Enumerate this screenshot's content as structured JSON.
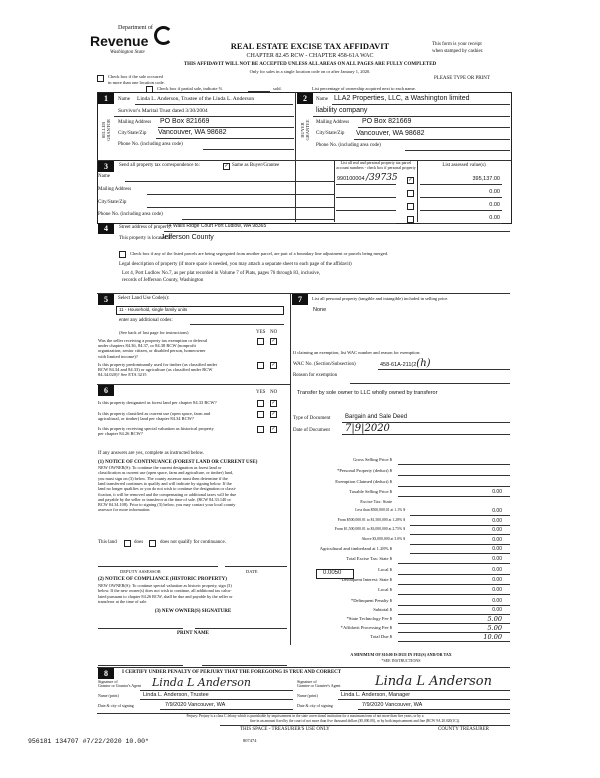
{
  "header": {
    "logo_top": "Department of",
    "logo_main": "Revenue",
    "logo_sub": "Washington State",
    "title": "REAL ESTATE EXCISE TAX AFFIDAVIT",
    "chapter": "CHAPTER 82.45 RCW - CHAPTER 458-61A WAC",
    "warning": "THIS AFFIDAVIT WILL NOT BE ACCEPTED UNLESS ALL AREAS ON ALL PAGES ARE FULLY COMPLETED",
    "only_for": "Only for sales in a single location code on or after January 1, 2020.",
    "receipt_1": "This form is your receipt",
    "receipt_2": "when stamped by cashier.",
    "type_or_print": "PLEASE TYPE OR PRINT",
    "multi_location_1": "Check box if the sale occurred",
    "multi_location_2": "in more than one location code.",
    "partial_sale": "Check box if partial sale, indicate %",
    "sold": "sold.",
    "ownership_note": "List percentage of ownership acquired next to each name."
  },
  "seller": {
    "num": "1",
    "side_label": "SELLER GRANTOR",
    "name_label": "Name",
    "name_1": "Linda L. Anderson, Trustee of the Linda L. Anderson",
    "name_2": "Survivor's Marital Trust dated 3/30/2004",
    "mail_label": "Mailing Address",
    "mail": "PO Box 821669",
    "city_label": "City/State/Zip",
    "city": "Vancouver, WA 98682",
    "phone_label": "Phone No. (including area code)"
  },
  "buyer": {
    "num": "2",
    "side_label": "BUYER GRANTEE",
    "name_label": "Name",
    "name_1": "LLA2 Properties, LLC, a Washington limited",
    "name_2": "liability company",
    "mail_label": "Mailing Address",
    "mail": "PO Box 821669",
    "city_label": "City/State/Zip",
    "city": "Vancouver, WA 98682",
    "phone_label": "Phone No. (including area code)"
  },
  "section3": {
    "num": "3",
    "send_label": "Send all property tax correspondence to:",
    "same_label": "Same as Buyer/Grantee",
    "same_checked": true,
    "name_label": "Name",
    "mail_label": "Mailing Address",
    "city_label": "City/State/Zip",
    "phone_label": "Phone No. (including area code)",
    "parcel_header_1": "List all real and personal property tax parcel",
    "parcel_header_2": "account numbers - check box if personal property",
    "value_header": "List assessed value(s)",
    "parcels": [
      {
        "number": "990100004",
        "handwritten": "/39735",
        "personal": true,
        "value": "395,137.00"
      },
      {
        "number": "",
        "handwritten": "",
        "personal": false,
        "value": "0.00"
      },
      {
        "number": "",
        "handwritten": "",
        "personal": false,
        "value": "0.00"
      },
      {
        "number": "",
        "handwritten": "",
        "personal": false,
        "value": "0.00"
      }
    ]
  },
  "section4": {
    "num": "4",
    "street_label": "Street address of property:",
    "street": "74 Walls Ridge Court Port Ludlow, WA 98365",
    "located_label": "This property is located in",
    "county": "Jefferson County",
    "segregated_label": "Check box if any of the listed parcels are being segregated from another parcel, are part of a boundary line adjustment or parcels being merged.",
    "legal_label": "Legal description of property (if more space is needed, you may attach a separate sheet to each page of the affidavit)",
    "legal_1": "Lot 4, Port Ludlow No.7, as per plat recorded in Volume 7 of Plats, pages 76 through 83, inclusive,",
    "legal_2": "records of Jefferson County, Washington"
  },
  "section5": {
    "num": "5",
    "label": "Select Land Use Code(s):",
    "code": "11 - Household, single family units",
    "additional": "enter any additional codes:",
    "see_back": "(See back of last page for instructions)",
    "yes": "YES",
    "no": "NO",
    "q1": [
      "Was the seller receiving a property tax exemption or deferral",
      "under chapters 84.36, 84.37, or 84.38 RCW (nonprofit",
      "organization, senior citizen, or disabled person, homeowner",
      "with limited income)?"
    ],
    "q2": [
      "Is this property predominantly used for timber (as classified under",
      "RCW 84.34 and 84.33) or agriculture (as classified under RCW",
      "84.34.020)? See ETA 3215"
    ]
  },
  "section6": {
    "num": "6",
    "yes": "YES",
    "no": "NO",
    "q1": [
      "Is this property designated as forest land per chapter 84.33 RCW?"
    ],
    "q2": [
      "Is this property classified as current use (open space, farm and",
      "agricultural, or timber) land per chapter 84.34 RCW?"
    ],
    "q3": [
      "Is this property receiving special valuation as historical property",
      "per chapter 84.26 RCW?"
    ],
    "if_yes": "If any answers are yes, complete as instructed below.",
    "notice1_title": "(1) NOTICE OF CONTINUANCE (FOREST LAND OR CURRENT USE)",
    "notice1_body": [
      "NEW OWNER(S): To continue the current designation as forest land or",
      "classification as current use (open space, farm and agriculture, or timber) land,",
      "you must sign on (3) below. The county assessor must then determine if the",
      "land transferred continues to qualify and will indicate by signing below. If the",
      "land no longer qualifies or you do not wish to continue the designation or classi-",
      "fication, it will be removed and the compensating or additional taxes will be due",
      "and payable by the seller or transferor at the time of sale. (RCW 84.33.140 or",
      "RCW 84.34.108). Prior to signing (3) below, you may contact your local county",
      "assessor for more information."
    ],
    "this_land": "This land",
    "does": "does",
    "does_not": "does not qualify for continuance.",
    "deputy": "DEPUTY ASSESSOR",
    "date": "DATE",
    "notice2_title": "(2) NOTICE OF COMPLIANCE (HISTORIC PROPERTY)",
    "notice2_body": [
      "NEW OWNER(S): To continue special valuation as historic property, sign (3)",
      "below. If the new owner(s) does not wish to continue, all additional tax calcu-",
      "lated pursuant to chapter 84.26 RCW, shall be due and payable by the seller or",
      "transferor at the time of sale."
    ],
    "new_owner_sig": "(3) NEW OWNER(S) SIGNATURE",
    "print_name": "PRINT NAME"
  },
  "section7": {
    "num": "7",
    "label": "List all personal property (tangible and intangible) included in selling price.",
    "value": "None",
    "exemption_label": "If claiming an exemption, list WAC number and reason for exemption:",
    "wac_label": "WAC No. (Section/Subsection)",
    "wac": "458-61A-211(2",
    "wac_hand": "(h)",
    "reason_label": "Reason for exemption",
    "reason": "Transfer by sole owner to LLC wholly owned by transferor",
    "doc_type_label": "Type of Document",
    "doc_type": "Bargain and Sale Deed",
    "doc_date_label": "Date of Document",
    "doc_date": "7|9|2020"
  },
  "tax": {
    "rows": [
      {
        "label": "Gross Selling Price $",
        "value": ""
      },
      {
        "label": "*Personal Property (deduct) $",
        "value": ""
      },
      {
        "label": "Exemption Claimed (deduct) $",
        "value": ""
      },
      {
        "label": "Taxable Selling Price $",
        "value": "0.00"
      },
      {
        "label": "Excise Tax: State",
        "value": ""
      },
      {
        "label": "Less than $500,000.01 at 1.1% $",
        "value": "0.00"
      },
      {
        "label": "From $500,000.01 to $1,500,000 at 1.28% $",
        "value": "0.00"
      },
      {
        "label": "From $1,500,000.01 to $3,000,000 at 2.75% $",
        "value": "0.00"
      },
      {
        "label": "Above $3,000,000 at 3.0% $",
        "value": "0.00"
      },
      {
        "label": "Agricultural and timberland at 1.28% $",
        "value": "0.00"
      },
      {
        "label": "Total Excise Tax: State $",
        "value": "0.00"
      },
      {
        "label": "Local $",
        "value": "0.00"
      },
      {
        "label": "*Delinquent Interest: State $",
        "value": "0.00"
      },
      {
        "label": "Local $",
        "value": "0.00"
      },
      {
        "label": "*Delinquent Penalty $",
        "value": "0.00"
      },
      {
        "label": "Subtotal $",
        "value": "0.00"
      },
      {
        "label": "*State Technology Fee $",
        "value": "5.00"
      },
      {
        "label": "*Affidavit Processing Fee $",
        "value": "5.00"
      },
      {
        "label": "Total Due $",
        "value": "10.00"
      }
    ],
    "local_rate": "0.0050",
    "minimum": "A MINIMUM OF $10.00 IS DUE IN FEE(S) AND/OR TAX",
    "see_instructions": "*SEE INSTRUCTIONS"
  },
  "section8": {
    "num": "8",
    "certify": "I CERTIFY UNDER PENALTY OF PERJURY THAT THE FOREGOING IS TRUE AND CORRECT",
    "grantor_sig_label_1": "Signature of",
    "grantor_sig_label_2": "Grantor or Grantor's Agent",
    "grantee_sig_label_1": "Signature of",
    "grantee_sig_label_2": "Grantee or Grantee's Agent",
    "grantor_signature": "Linda L Anderson",
    "grantee_signature": "Linda L Anderson",
    "name_label": "Name (print)",
    "grantor_name": "Linda L. Anderson, Trustee",
    "grantee_name": "Linda L. Anderson, Manager",
    "date_label": "Date & city of signing",
    "grantor_date": "7/9/2020  Vancouver, WA",
    "grantee_date": "7/9/2020  Vancouver, WA"
  },
  "footer": {
    "perjury_1": "Perjury: Perjury is a class C felony which is punishable by imprisonment in the state correctional institution for a maximum term of not more than five years, or by a",
    "perjury_2": "fine in an amount fixed by the court of not more than five thousand dollars ($5,000.00), or by both imprisonment and fine (RCW 9A.20.020(1C)).",
    "stamp": "956181 134707 #7/22/2020 10.00*",
    "treasurer_use": "THIS SPACE - TREASURER'S USE ONLY",
    "county_treasurer": "COUNTY TREASURER",
    "form_no": "807474"
  }
}
